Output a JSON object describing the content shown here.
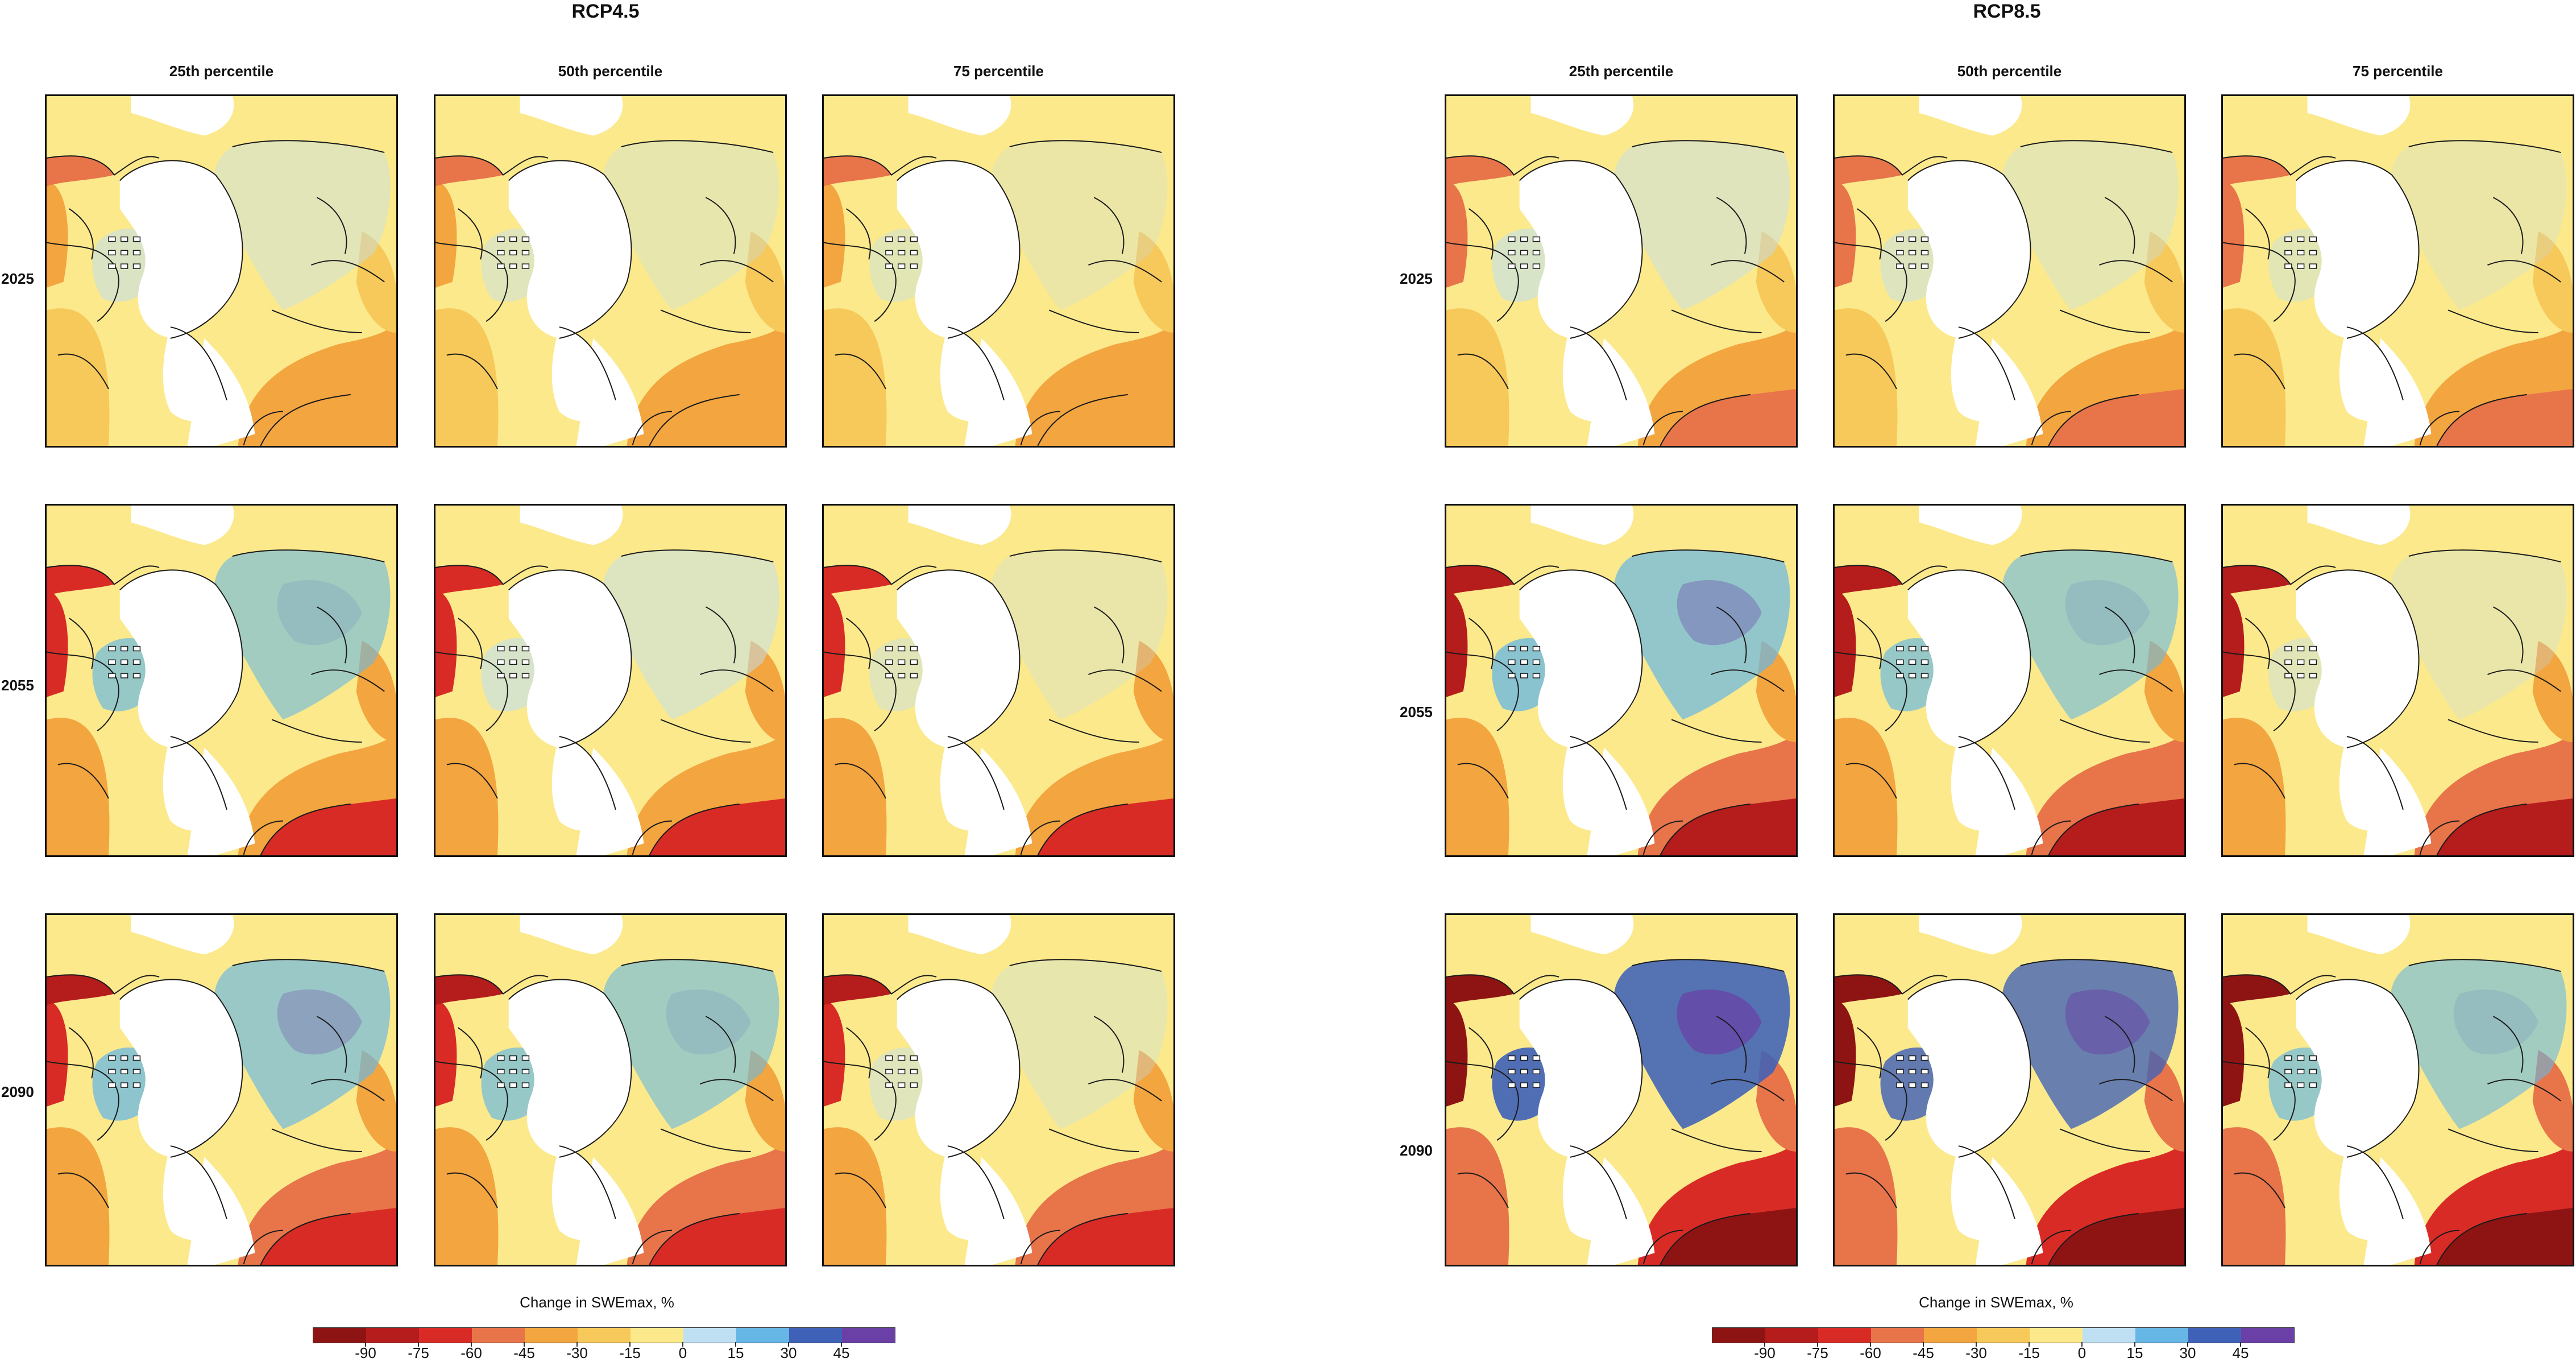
{
  "scenarios": [
    {
      "title": "RCP4.5"
    },
    {
      "title": "RCP8.5"
    }
  ],
  "columns": [
    "25th percentile",
    "50th percentile",
    "75 percentile"
  ],
  "rows": [
    "2025",
    "2055",
    "2090"
  ],
  "colorbar": {
    "title": "Change in SWEmax, %",
    "ticks": [
      "-90",
      "-75",
      "-60",
      "-45",
      "-30",
      "-15",
      "0",
      "15",
      "30",
      "45"
    ],
    "colors": [
      "#8e1414",
      "#b51c1c",
      "#d92b26",
      "#e8744a",
      "#f3a540",
      "#f7c95a",
      "#fbe98c",
      "#bfe0f2",
      "#66b7e6",
      "#3f62b8",
      "#6a3fa6"
    ]
  },
  "panel_intensity": [
    [
      [
        0.25,
        0.1,
        -0.1
      ],
      [
        0.45,
        0.35,
        0.05
      ],
      [
        0.55,
        0.45,
        0.1
      ]
    ],
    [
      [
        0.3,
        0.15,
        -0.1
      ],
      [
        0.6,
        0.45,
        0.05
      ],
      [
        0.85,
        0.7,
        0.45
      ]
    ]
  ],
  "colors": {
    "land_white": "#ffffff",
    "border": "#111111",
    "coast": "#1a1a1a"
  }
}
